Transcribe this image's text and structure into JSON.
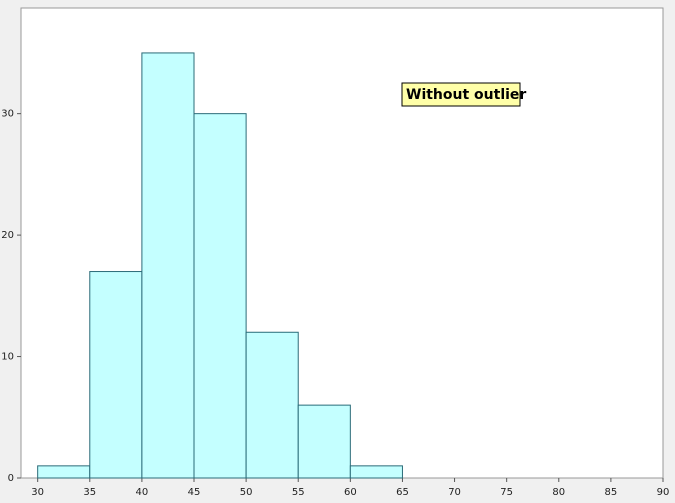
{
  "chart_data": {
    "type": "histogram",
    "bins": [
      30,
      35,
      40,
      45,
      50,
      55,
      60,
      65
    ],
    "values": [
      1,
      17,
      35,
      30,
      12,
      6,
      1
    ],
    "color": "#c4ffff",
    "edge_color": "#2a6b78",
    "xlim": [
      28.4,
      90
    ],
    "xticks": [
      30,
      35,
      40,
      45,
      50,
      55,
      60,
      65,
      70,
      75,
      80,
      85,
      90
    ],
    "ylim": [
      0,
      38.7
    ],
    "yticks": [
      0,
      10,
      20,
      30
    ],
    "annotation": "Without outlier"
  }
}
